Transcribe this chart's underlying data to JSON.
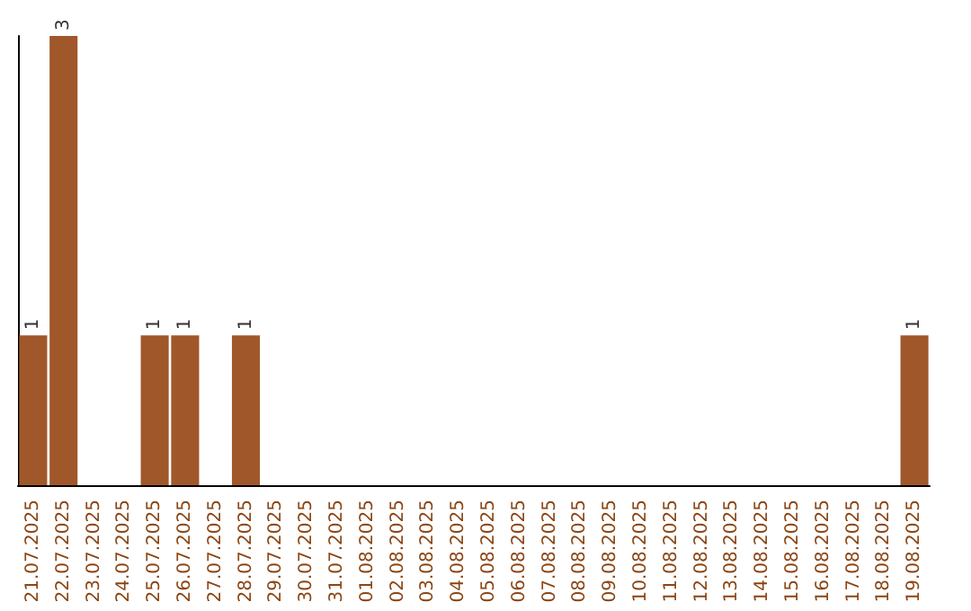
{
  "chart_data": {
    "type": "bar",
    "categories": [
      "21.07.2025",
      "22.07.2025",
      "23.07.2025",
      "24.07.2025",
      "25.07.2025",
      "26.07.2025",
      "27.07.2025",
      "28.07.2025",
      "29.07.2025",
      "30.07.2025",
      "31.07.2025",
      "01.08.2025",
      "02.08.2025",
      "03.08.2025",
      "04.08.2025",
      "05.08.2025",
      "06.08.2025",
      "07.08.2025",
      "08.08.2025",
      "09.08.2025",
      "10.08.2025",
      "11.08.2025",
      "12.08.2025",
      "13.08.2025",
      "14.08.2025",
      "15.08.2025",
      "16.08.2025",
      "17.08.2025",
      "18.08.2025",
      "19.08.2025"
    ],
    "values": [
      1,
      3,
      0,
      0,
      1,
      1,
      0,
      1,
      0,
      0,
      0,
      0,
      0,
      0,
      0,
      0,
      0,
      0,
      0,
      0,
      0,
      0,
      0,
      0,
      0,
      0,
      0,
      0,
      0,
      1
    ],
    "value_labels": [
      "1",
      "3",
      null,
      null,
      "1",
      "1",
      null,
      "1",
      null,
      null,
      null,
      null,
      null,
      null,
      null,
      null,
      null,
      null,
      null,
      null,
      null,
      null,
      null,
      null,
      null,
      null,
      null,
      null,
      null,
      "1"
    ],
    "color": "#a0582a",
    "tick_labels": "x",
    "grid": false
  }
}
